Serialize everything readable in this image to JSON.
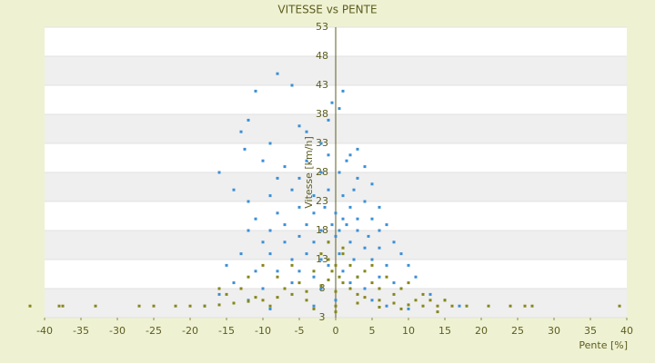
{
  "chart_data": {
    "type": "scatter",
    "title": "VITESSE vs PENTE",
    "x_label": "Pente [%]",
    "y_label": "Vitesse [km/h]",
    "xlim": [
      -40,
      40
    ],
    "xticks": [
      -40,
      -35,
      -30,
      -25,
      -20,
      -15,
      -10,
      -5,
      0,
      5,
      10,
      15,
      20,
      25,
      30,
      35,
      40
    ],
    "ylim": [
      3,
      53
    ],
    "yticks": [
      3,
      8,
      13,
      18,
      23,
      28,
      33,
      38,
      43,
      48,
      53
    ],
    "grid": true,
    "series": [
      {
        "color": "#3b8fd6",
        "x": [
          -8,
          -11,
          -6,
          1,
          -0.5,
          0.5,
          -12,
          -13,
          -5,
          -4,
          -1,
          -12.5,
          -9,
          -2,
          2,
          3,
          -10,
          -16,
          -7,
          -4,
          -1,
          1.5,
          4,
          -14,
          -8,
          -5,
          -2,
          0.5,
          3,
          5,
          -12,
          -9,
          -6,
          -3,
          -1,
          1,
          2.5,
          4,
          6,
          -11,
          -8,
          -5,
          -3,
          -1.5,
          0,
          1,
          2,
          3,
          5,
          7,
          -12,
          -9,
          -7,
          -4,
          -2,
          -0.5,
          0.5,
          1.5,
          3,
          4.5,
          6,
          8,
          -10,
          -7,
          -5,
          -3,
          -1,
          0,
          2,
          4,
          6,
          9,
          -13,
          -9,
          -6,
          -4,
          -2,
          0.5,
          2.5,
          5,
          7,
          10,
          -15,
          -11,
          -8,
          -5,
          -3,
          -1,
          1,
          3,
          6,
          8,
          11,
          -14,
          -10,
          -6,
          -2,
          2,
          4,
          9,
          -16,
          13,
          -12,
          0,
          5,
          15,
          -3,
          7,
          -18,
          17,
          -9,
          10
        ],
        "values": [
          45,
          42,
          43,
          42,
          40,
          39,
          37,
          35,
          36,
          35,
          37,
          32,
          33,
          33,
          31,
          32,
          30,
          28,
          29,
          30,
          31,
          30,
          29,
          25,
          27,
          27,
          28,
          28,
          27,
          26,
          23,
          24,
          25,
          24,
          25,
          24,
          25,
          23,
          22,
          20,
          21,
          22,
          21,
          22,
          21,
          20,
          22,
          20,
          20,
          19,
          18,
          18,
          19,
          19,
          18,
          19,
          18,
          19,
          18,
          17,
          18,
          16,
          16,
          16,
          17,
          16,
          16,
          17,
          16,
          15,
          15,
          14,
          14,
          14,
          13,
          14,
          13,
          14,
          13,
          13,
          12,
          12,
          12,
          11,
          11,
          11,
          10,
          12,
          11,
          10,
          10,
          9,
          10,
          9,
          8,
          9,
          8,
          9,
          8,
          8,
          7,
          7,
          6,
          6,
          6,
          6,
          5,
          5,
          5,
          5,
          4.5,
          4.5
        ]
      },
      {
        "color": "#86861a",
        "x": [
          -42,
          -38,
          -37.5,
          -33,
          -27,
          -25,
          -22,
          -20,
          -18,
          -16,
          -14,
          -12,
          -10,
          -8,
          -6,
          -4,
          -2,
          -1,
          -0.5,
          0,
          0.5,
          1,
          2,
          3,
          4,
          6,
          8,
          10,
          12,
          14,
          16,
          18,
          21,
          24,
          26,
          27,
          39,
          -13,
          -12,
          -10,
          -8,
          -6,
          -5,
          -3,
          -2,
          -1,
          1,
          2,
          3,
          4,
          5,
          6,
          7,
          8,
          9,
          10,
          11,
          12,
          13,
          15,
          -15,
          -16,
          -11,
          -7,
          -4,
          0,
          0,
          0,
          3,
          6,
          -3,
          9,
          14,
          -9,
          5,
          -1,
          1
        ],
        "values": [
          5,
          5,
          5,
          5,
          5,
          5,
          5,
          5,
          5,
          5.2,
          5.5,
          5.8,
          6,
          6.5,
          7,
          7.5,
          8.5,
          9.5,
          11,
          12,
          10,
          9,
          8,
          7,
          6.5,
          6,
          5.5,
          5.2,
          5,
          5,
          5,
          5,
          5,
          5,
          5,
          5,
          5,
          8,
          10,
          12,
          10,
          12,
          9,
          11,
          14,
          13,
          14,
          12,
          10,
          11,
          9,
          8,
          10,
          7,
          8,
          9,
          6,
          7,
          6,
          6,
          7,
          8,
          6.5,
          8,
          6,
          4,
          5,
          7.5,
          5.5,
          4.8,
          4.5,
          4.5,
          4,
          5,
          12,
          16,
          15
        ]
      }
    ]
  }
}
